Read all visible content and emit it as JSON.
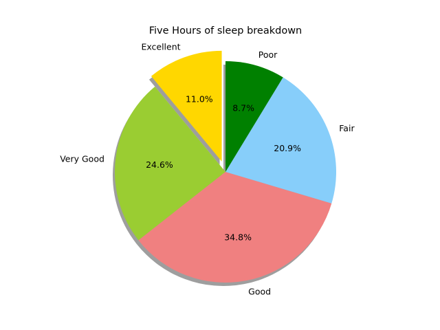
{
  "chart_data": {
    "type": "pie",
    "title": "Five Hours of sleep breakdown",
    "labels": [
      "Excellent",
      "Very Good",
      "Good",
      "Fair",
      "Poor"
    ],
    "values": [
      11.0,
      24.6,
      34.8,
      20.9,
      8.7
    ],
    "pct_labels": [
      "11.0%",
      "24.6%",
      "34.8%",
      "20.9%",
      "8.7%"
    ],
    "colors": [
      "#ffd700",
      "#9acd32",
      "#f08080",
      "#87cefa",
      "#008000"
    ],
    "explode": [
      0.1,
      0,
      0,
      0,
      0
    ],
    "start_angle_deg": 90,
    "direction": "counterclockwise",
    "shadow": true
  }
}
